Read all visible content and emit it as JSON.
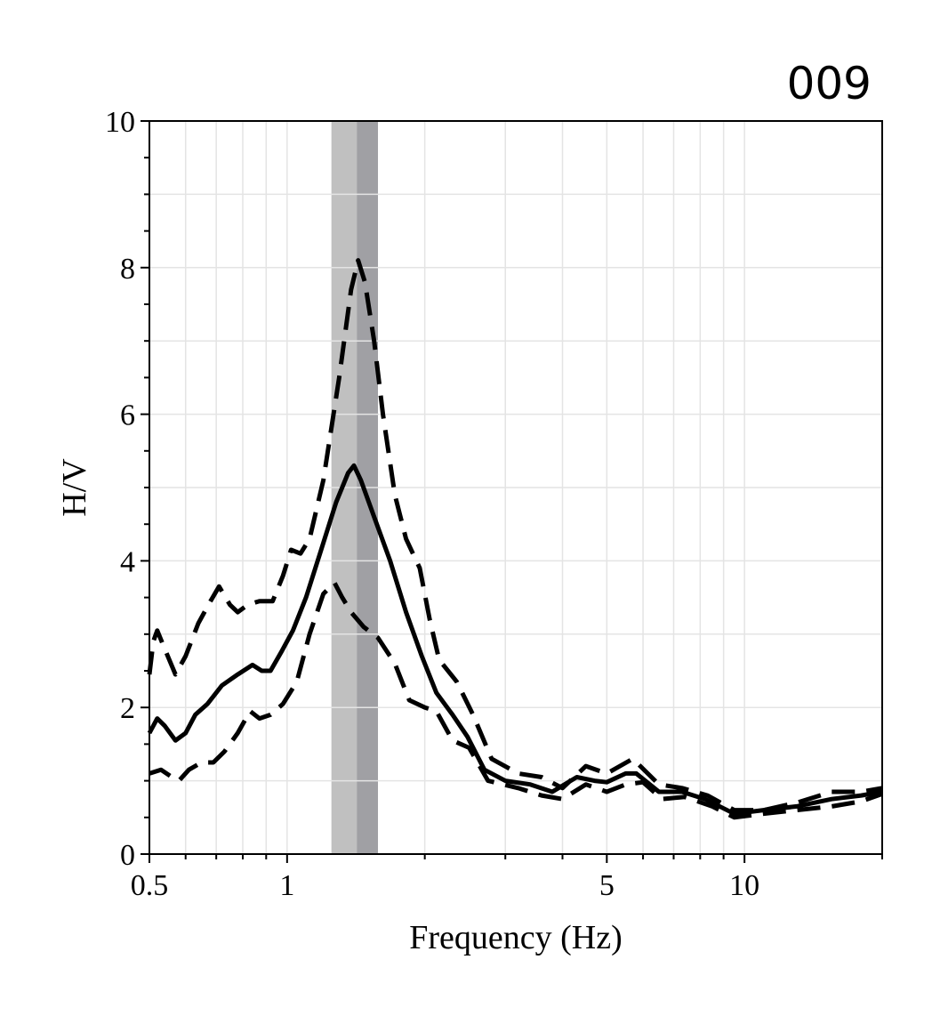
{
  "panel_label": "009",
  "chart_data": {
    "type": "line",
    "xlabel": "Frequency (Hz)",
    "ylabel": "H/V",
    "x_scale": "log",
    "xlim": [
      0.5,
      20
    ],
    "ylim": [
      0,
      10
    ],
    "grid": true,
    "x_major_ticks": [
      0.5,
      1,
      5,
      10
    ],
    "x_major_tick_labels": [
      "0.5",
      "1",
      "5",
      "10"
    ],
    "x_minor_ticks": [
      0.6,
      0.7,
      0.8,
      0.9,
      2,
      3,
      4,
      6,
      7,
      8,
      9,
      20
    ],
    "y_major_ticks": [
      0,
      2,
      4,
      6,
      8,
      10
    ],
    "y_major_tick_labels": [
      "0",
      "2",
      "4",
      "6",
      "8",
      "10"
    ],
    "bands": [
      {
        "x0": 1.25,
        "x1": 1.42,
        "color": "#c0c0c0"
      },
      {
        "x0": 1.42,
        "x1": 1.58,
        "color": "#a0a0a4"
      }
    ],
    "series": [
      {
        "style": "solid",
        "color": "#000000",
        "points": [
          [
            0.5,
            1.65
          ],
          [
            0.52,
            1.85
          ],
          [
            0.54,
            1.75
          ],
          [
            0.57,
            1.55
          ],
          [
            0.6,
            1.65
          ],
          [
            0.63,
            1.9
          ],
          [
            0.67,
            2.05
          ],
          [
            0.72,
            2.3
          ],
          [
            0.78,
            2.45
          ],
          [
            0.84,
            2.58
          ],
          [
            0.88,
            2.5
          ],
          [
            0.92,
            2.5
          ],
          [
            0.97,
            2.75
          ],
          [
            1.03,
            3.05
          ],
          [
            1.1,
            3.5
          ],
          [
            1.18,
            4.1
          ],
          [
            1.28,
            4.8
          ],
          [
            1.36,
            5.2
          ],
          [
            1.4,
            5.3
          ],
          [
            1.45,
            5.1
          ],
          [
            1.55,
            4.6
          ],
          [
            1.68,
            4.0
          ],
          [
            1.82,
            3.3
          ],
          [
            1.97,
            2.7
          ],
          [
            2.12,
            2.2
          ],
          [
            2.3,
            1.9
          ],
          [
            2.48,
            1.6
          ],
          [
            2.7,
            1.15
          ],
          [
            3.0,
            1.0
          ],
          [
            3.4,
            0.95
          ],
          [
            3.8,
            0.85
          ],
          [
            4.3,
            1.05
          ],
          [
            4.7,
            1.0
          ],
          [
            5.0,
            0.98
          ],
          [
            5.5,
            1.1
          ],
          [
            5.8,
            1.1
          ],
          [
            6.5,
            0.85
          ],
          [
            7.3,
            0.85
          ],
          [
            8.2,
            0.75
          ],
          [
            9.5,
            0.55
          ],
          [
            11.0,
            0.6
          ],
          [
            13.0,
            0.65
          ],
          [
            15.5,
            0.75
          ],
          [
            18.0,
            0.8
          ],
          [
            20.0,
            0.85
          ]
        ]
      },
      {
        "style": "dashed",
        "color": "#000000",
        "points": [
          [
            0.5,
            2.45
          ],
          [
            0.51,
            2.9
          ],
          [
            0.52,
            3.05
          ],
          [
            0.54,
            2.8
          ],
          [
            0.57,
            2.45
          ],
          [
            0.6,
            2.7
          ],
          [
            0.64,
            3.15
          ],
          [
            0.68,
            3.45
          ],
          [
            0.71,
            3.65
          ],
          [
            0.75,
            3.4
          ],
          [
            0.78,
            3.3
          ],
          [
            0.82,
            3.4
          ],
          [
            0.87,
            3.45
          ],
          [
            0.93,
            3.45
          ],
          [
            0.98,
            3.8
          ],
          [
            1.02,
            4.15
          ],
          [
            1.07,
            4.1
          ],
          [
            1.12,
            4.3
          ],
          [
            1.2,
            5.1
          ],
          [
            1.3,
            6.5
          ],
          [
            1.38,
            7.7
          ],
          [
            1.43,
            8.1
          ],
          [
            1.48,
            7.8
          ],
          [
            1.55,
            7.0
          ],
          [
            1.62,
            6.0
          ],
          [
            1.72,
            4.9
          ],
          [
            1.82,
            4.3
          ],
          [
            1.95,
            3.9
          ],
          [
            2.05,
            3.2
          ],
          [
            2.15,
            2.65
          ],
          [
            2.35,
            2.35
          ],
          [
            2.55,
            1.9
          ],
          [
            2.8,
            1.3
          ],
          [
            3.2,
            1.1
          ],
          [
            3.6,
            1.05
          ],
          [
            4.0,
            0.9
          ],
          [
            4.5,
            1.2
          ],
          [
            5.0,
            1.1
          ],
          [
            5.7,
            1.3
          ],
          [
            6.5,
            0.95
          ],
          [
            7.3,
            0.9
          ],
          [
            8.3,
            0.8
          ],
          [
            9.5,
            0.6
          ],
          [
            11.0,
            0.6
          ],
          [
            13.0,
            0.7
          ],
          [
            15.5,
            0.85
          ],
          [
            18.0,
            0.85
          ],
          [
            20.0,
            0.9
          ]
        ]
      },
      {
        "style": "dashed",
        "color": "#000000",
        "points": [
          [
            0.5,
            1.1
          ],
          [
            0.53,
            1.15
          ],
          [
            0.56,
            1.05
          ],
          [
            0.58,
            1.0
          ],
          [
            0.61,
            1.15
          ],
          [
            0.65,
            1.25
          ],
          [
            0.69,
            1.25
          ],
          [
            0.73,
            1.4
          ],
          [
            0.78,
            1.65
          ],
          [
            0.83,
            1.95
          ],
          [
            0.87,
            1.85
          ],
          [
            0.92,
            1.9
          ],
          [
            0.98,
            2.05
          ],
          [
            1.05,
            2.35
          ],
          [
            1.12,
            3.0
          ],
          [
            1.2,
            3.55
          ],
          [
            1.27,
            3.7
          ],
          [
            1.32,
            3.5
          ],
          [
            1.38,
            3.3
          ],
          [
            1.47,
            3.1
          ],
          [
            1.58,
            2.95
          ],
          [
            1.72,
            2.6
          ],
          [
            1.85,
            2.1
          ],
          [
            2.0,
            2.0
          ],
          [
            2.12,
            1.95
          ],
          [
            2.3,
            1.55
          ],
          [
            2.5,
            1.45
          ],
          [
            2.75,
            1.0
          ],
          [
            3.2,
            0.9
          ],
          [
            3.6,
            0.8
          ],
          [
            4.0,
            0.75
          ],
          [
            4.5,
            0.95
          ],
          [
            5.0,
            0.85
          ],
          [
            5.5,
            0.95
          ],
          [
            6.0,
            0.98
          ],
          [
            6.6,
            0.75
          ],
          [
            7.4,
            0.78
          ],
          [
            8.5,
            0.65
          ],
          [
            9.5,
            0.5
          ],
          [
            11.0,
            0.55
          ],
          [
            13.0,
            0.6
          ],
          [
            15.5,
            0.65
          ],
          [
            18.0,
            0.72
          ],
          [
            20.0,
            0.82
          ]
        ]
      }
    ]
  }
}
